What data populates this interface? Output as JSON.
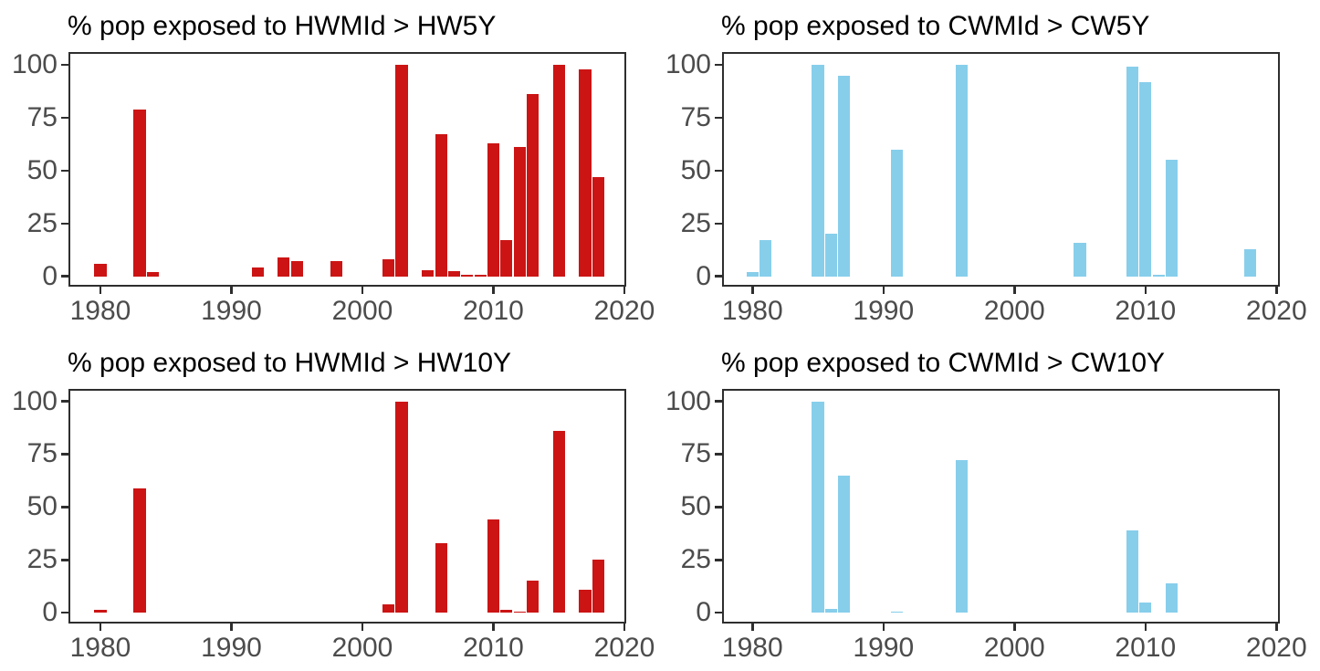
{
  "figure": {
    "background": "#ffffff",
    "panel_border_color": "#2e2e2e",
    "tick_color": "#2e2e2e",
    "axis_text_color": "#4c4c4c",
    "title_color": "#000000"
  },
  "colors": {
    "heatwave_red": "#cc1414",
    "coldwave_blue": "#87ceeb"
  },
  "chart_data": [
    {
      "id": "hw5y",
      "type": "bar",
      "title": "% pop exposed to HWMId > HW5Y",
      "bar_color": "#cc1414",
      "x": [
        1980,
        1983,
        1984,
        1992,
        1994,
        1995,
        1998,
        2002,
        2003,
        2005,
        2006,
        2007,
        2008,
        2009,
        2010,
        2011,
        2012,
        2013,
        2015,
        2017,
        2018
      ],
      "values": [
        6,
        79,
        2,
        4,
        9,
        7,
        7,
        8,
        100,
        3,
        67,
        2.5,
        0.6,
        0.6,
        63,
        17,
        61,
        86,
        100,
        98,
        47
      ],
      "x_ticks": [
        1980,
        1990,
        2000,
        2010,
        2020
      ],
      "y_ticks": [
        0,
        25,
        50,
        75,
        100
      ],
      "xlim": [
        1977.5,
        2020.5
      ],
      "ylim": [
        0,
        100
      ],
      "grid": false,
      "legend": "none"
    },
    {
      "id": "cw5y",
      "type": "bar",
      "title": "% pop exposed to CWMId > CW5Y",
      "bar_color": "#87ceeb",
      "x": [
        1980,
        1981,
        1985,
        1986,
        1987,
        1991,
        1996,
        2005,
        2009,
        2010,
        2011,
        2012,
        2018
      ],
      "values": [
        2,
        17,
        100,
        20,
        95,
        60,
        100,
        16,
        99,
        92,
        0.7,
        55,
        13
      ],
      "x_ticks": [
        1980,
        1990,
        2000,
        2010,
        2020
      ],
      "y_ticks": [
        0,
        25,
        50,
        75,
        100
      ],
      "xlim": [
        1977.5,
        2020.5
      ],
      "ylim": [
        0,
        100
      ],
      "grid": false,
      "legend": "none"
    },
    {
      "id": "hw10y",
      "type": "bar",
      "title": "% pop exposed to HWMId > HW10Y",
      "bar_color": "#cc1414",
      "x": [
        1980,
        1983,
        2002,
        2003,
        2006,
        2010,
        2011,
        2012,
        2013,
        2015,
        2017,
        2018
      ],
      "values": [
        1.4,
        59,
        4,
        100,
        33,
        44,
        1.5,
        0.7,
        15,
        86,
        11,
        25
      ],
      "x_ticks": [
        1980,
        1990,
        2000,
        2010,
        2020
      ],
      "y_ticks": [
        0,
        25,
        50,
        75,
        100
      ],
      "xlim": [
        1977.5,
        2020.5
      ],
      "ylim": [
        0,
        100
      ],
      "grid": false,
      "legend": "none"
    },
    {
      "id": "cw10y",
      "type": "bar",
      "title": "% pop exposed to CWMId > CW10Y",
      "bar_color": "#87ceeb",
      "x": [
        1985,
        1986,
        1987,
        1991,
        1996,
        2009,
        2010,
        2012
      ],
      "values": [
        100,
        2,
        65,
        0.5,
        72,
        39,
        5,
        14
      ],
      "x_ticks": [
        1980,
        1990,
        2000,
        2010,
        2020
      ],
      "y_ticks": [
        0,
        25,
        50,
        75,
        100
      ],
      "xlim": [
        1977.5,
        2020.5
      ],
      "ylim": [
        0,
        100
      ],
      "grid": false,
      "legend": "none"
    }
  ]
}
